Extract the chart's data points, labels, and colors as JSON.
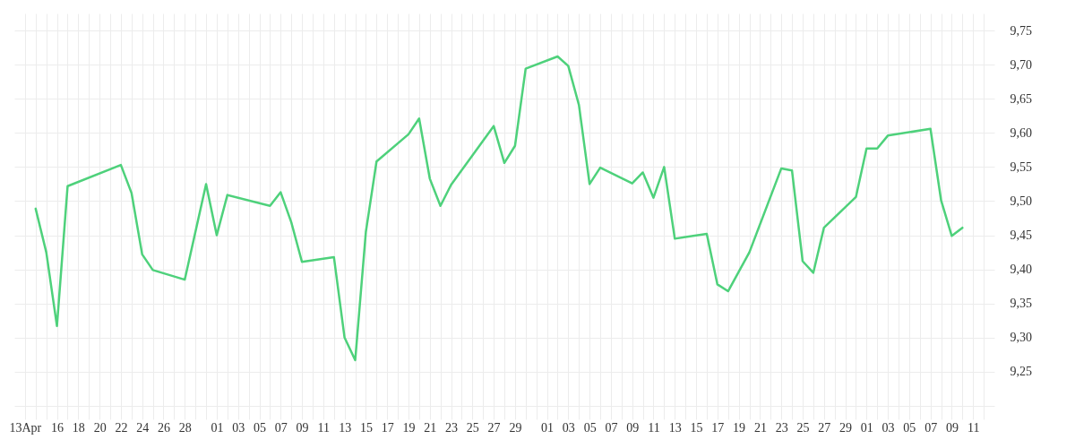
{
  "chart_data": {
    "type": "line",
    "x": [
      "--04-14",
      "--04-15",
      "--04-16",
      "--04-17",
      "--04-22",
      "--04-23",
      "--04-24",
      "--04-25",
      "--04-28",
      "--04-30",
      "--05-01",
      "--05-02",
      "--05-06",
      "--05-07",
      "--05-08",
      "--05-09",
      "--05-12",
      "--05-13",
      "--05-14",
      "--05-15",
      "--05-16",
      "--05-19",
      "--05-20",
      "--05-21",
      "--05-22",
      "--05-23",
      "--05-27",
      "--05-28",
      "--05-29",
      "--05-30",
      "--06-02",
      "--06-03",
      "--06-04",
      "--06-05",
      "--06-06",
      "--06-09",
      "--06-10",
      "--06-11",
      "--06-12",
      "--06-13",
      "--06-16",
      "--06-17",
      "--06-18",
      "--06-20",
      "--06-23",
      "--06-24",
      "--06-25",
      "--06-26",
      "--06-27",
      "--06-30",
      "--07-01",
      "--07-02",
      "--07-03",
      "--07-07",
      "--07-08",
      "--07-09",
      "--07-10"
    ],
    "series": [
      {
        "color": "#4ed17b",
        "values": [
          9.489,
          9.425,
          9.317,
          9.522,
          9.553,
          9.512,
          9.422,
          9.399,
          9.385,
          9.525,
          9.45,
          9.509,
          9.493,
          9.513,
          9.469,
          9.411,
          9.418,
          9.3,
          9.267,
          9.455,
          9.558,
          9.598,
          9.621,
          9.533,
          9.493,
          9.524,
          9.61,
          9.556,
          9.581,
          9.694,
          9.712,
          9.698,
          9.641,
          9.525,
          9.549,
          9.526,
          9.542,
          9.505,
          9.55,
          9.445,
          9.452,
          9.378,
          9.368,
          9.425,
          9.548,
          9.545,
          9.412,
          9.395,
          9.461,
          9.506,
          9.577,
          9.577,
          9.596,
          9.606,
          9.501,
          9.449,
          9.461
        ]
      }
    ],
    "xlim": [
      "--04-12",
      "--07-13"
    ],
    "xticks": [
      {
        "value": "--04-13",
        "label": "13Apr"
      },
      {
        "value": "--04-14",
        "label": null
      },
      {
        "value": "--04-15",
        "label": null
      },
      {
        "value": "--04-16",
        "label": "16"
      },
      {
        "value": "--04-17",
        "label": null
      },
      {
        "value": "--04-18",
        "label": "18"
      },
      {
        "value": "--04-19",
        "label": null
      },
      {
        "value": "--04-20",
        "label": "20"
      },
      {
        "value": "--04-21",
        "label": null
      },
      {
        "value": "--04-22",
        "label": "22"
      },
      {
        "value": "--04-23",
        "label": null
      },
      {
        "value": "--04-24",
        "label": "24"
      },
      {
        "value": "--04-25",
        "label": null
      },
      {
        "value": "--04-26",
        "label": "26"
      },
      {
        "value": "--04-27",
        "label": null
      },
      {
        "value": "--04-28",
        "label": "28"
      },
      {
        "value": "--04-29",
        "label": null
      },
      {
        "value": "--04-30",
        "label": null
      },
      {
        "value": "--05-01",
        "label": "01"
      },
      {
        "value": "--05-02",
        "label": null
      },
      {
        "value": "--05-03",
        "label": "03"
      },
      {
        "value": "--05-04",
        "label": null
      },
      {
        "value": "--05-05",
        "label": "05"
      },
      {
        "value": "--05-06",
        "label": null
      },
      {
        "value": "--05-07",
        "label": "07"
      },
      {
        "value": "--05-08",
        "label": null
      },
      {
        "value": "--05-09",
        "label": "09"
      },
      {
        "value": "--05-10",
        "label": null
      },
      {
        "value": "--05-11",
        "label": "11"
      },
      {
        "value": "--05-12",
        "label": null
      },
      {
        "value": "--05-13",
        "label": "13"
      },
      {
        "value": "--05-14",
        "label": null
      },
      {
        "value": "--05-15",
        "label": "15"
      },
      {
        "value": "--05-16",
        "label": null
      },
      {
        "value": "--05-17",
        "label": "17"
      },
      {
        "value": "--05-18",
        "label": null
      },
      {
        "value": "--05-19",
        "label": "19"
      },
      {
        "value": "--05-20",
        "label": null
      },
      {
        "value": "--05-21",
        "label": "21"
      },
      {
        "value": "--05-22",
        "label": null
      },
      {
        "value": "--05-23",
        "label": "23"
      },
      {
        "value": "--05-24",
        "label": null
      },
      {
        "value": "--05-25",
        "label": "25"
      },
      {
        "value": "--05-26",
        "label": null
      },
      {
        "value": "--05-27",
        "label": "27"
      },
      {
        "value": "--05-28",
        "label": null
      },
      {
        "value": "--05-29",
        "label": "29"
      },
      {
        "value": "--05-30",
        "label": null
      },
      {
        "value": "--05-31",
        "label": null
      },
      {
        "value": "--06-01",
        "label": "01"
      },
      {
        "value": "--06-02",
        "label": null
      },
      {
        "value": "--06-03",
        "label": "03"
      },
      {
        "value": "--06-04",
        "label": null
      },
      {
        "value": "--06-05",
        "label": "05"
      },
      {
        "value": "--06-06",
        "label": null
      },
      {
        "value": "--06-07",
        "label": "07"
      },
      {
        "value": "--06-08",
        "label": null
      },
      {
        "value": "--06-09",
        "label": "09"
      },
      {
        "value": "--06-10",
        "label": null
      },
      {
        "value": "--06-11",
        "label": "11"
      },
      {
        "value": "--06-12",
        "label": null
      },
      {
        "value": "--06-13",
        "label": "13"
      },
      {
        "value": "--06-14",
        "label": null
      },
      {
        "value": "--06-15",
        "label": "15"
      },
      {
        "value": "--06-16",
        "label": null
      },
      {
        "value": "--06-17",
        "label": "17"
      },
      {
        "value": "--06-18",
        "label": null
      },
      {
        "value": "--06-19",
        "label": "19"
      },
      {
        "value": "--06-20",
        "label": null
      },
      {
        "value": "--06-21",
        "label": "21"
      },
      {
        "value": "--06-22",
        "label": null
      },
      {
        "value": "--06-23",
        "label": "23"
      },
      {
        "value": "--06-24",
        "label": null
      },
      {
        "value": "--06-25",
        "label": "25"
      },
      {
        "value": "--06-26",
        "label": null
      },
      {
        "value": "--06-27",
        "label": "27"
      },
      {
        "value": "--06-28",
        "label": null
      },
      {
        "value": "--06-29",
        "label": "29"
      },
      {
        "value": "--06-30",
        "label": null
      },
      {
        "value": "--07-01",
        "label": "01"
      },
      {
        "value": "--07-02",
        "label": null
      },
      {
        "value": "--07-03",
        "label": "03"
      },
      {
        "value": "--07-04",
        "label": null
      },
      {
        "value": "--07-05",
        "label": "05"
      },
      {
        "value": "--07-06",
        "label": null
      },
      {
        "value": "--07-07",
        "label": "07"
      },
      {
        "value": "--07-08",
        "label": null
      },
      {
        "value": "--07-09",
        "label": "09"
      },
      {
        "value": "--07-10",
        "label": null
      },
      {
        "value": "--07-11",
        "label": "11"
      },
      {
        "value": "--07-12",
        "label": null
      }
    ],
    "ylim": [
      9.2,
      9.775
    ],
    "yticks": [
      {
        "value": 9.2,
        "label": null
      },
      {
        "value": 9.25,
        "label": "9,25"
      },
      {
        "value": 9.3,
        "label": "9,30"
      },
      {
        "value": 9.35,
        "label": "9,35"
      },
      {
        "value": 9.4,
        "label": "9,40"
      },
      {
        "value": 9.45,
        "label": "9,45"
      },
      {
        "value": 9.5,
        "label": "9,50"
      },
      {
        "value": 9.55,
        "label": "9,55"
      },
      {
        "value": 9.6,
        "label": "9,60"
      },
      {
        "value": 9.65,
        "label": "9,65"
      },
      {
        "value": 9.7,
        "label": "9,70"
      },
      {
        "value": 9.75,
        "label": "9,75"
      }
    ],
    "grid": true
  }
}
